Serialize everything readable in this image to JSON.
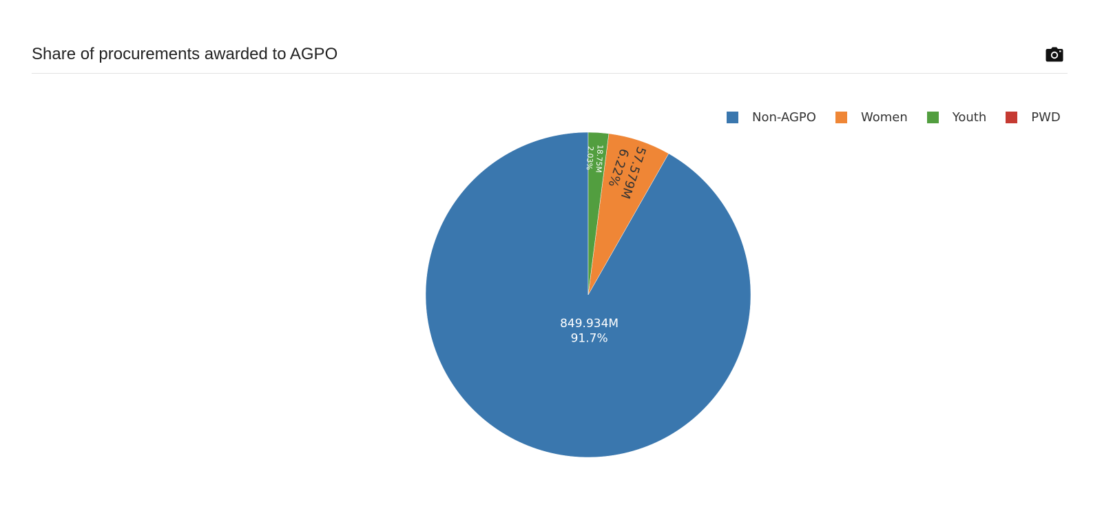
{
  "header": {
    "title": "Share of procurements awarded to AGPO",
    "camera_icon": "camera-icon"
  },
  "chart_data": {
    "type": "pie",
    "title": "Share of procurements awarded to AGPO",
    "legend_position": "top-right",
    "slices": [
      {
        "label": "Non-AGPO",
        "value_text": "849.934M",
        "percent_text": "91.7%",
        "value": 849.934,
        "percent": 91.7,
        "color": "#3a77ae"
      },
      {
        "label": "Women",
        "value_text": "57.579M",
        "percent_text": "6.22%",
        "value": 57.579,
        "percent": 6.22,
        "color": "#ef8636"
      },
      {
        "label": "Youth",
        "value_text": "18.75M",
        "percent_text": "2.03%",
        "value": 18.75,
        "percent": 2.03,
        "color": "#529e3f"
      },
      {
        "label": "PWD",
        "value_text": "",
        "percent_text": "",
        "value": 0,
        "percent": 0,
        "color": "#c53a32"
      }
    ]
  }
}
